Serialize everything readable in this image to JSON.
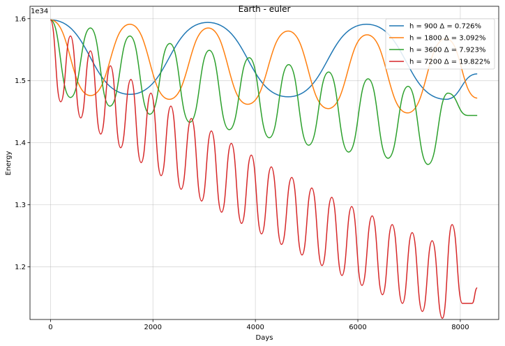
{
  "chart_data": {
    "type": "line",
    "title": "Earth - euler",
    "xlabel": "Days",
    "ylabel": "Energy",
    "y_offset_label": "1e34",
    "xlim": [
      -400,
      8750
    ],
    "ylim": [
      1.115,
      1.62
    ],
    "xticks": [
      0,
      2000,
      4000,
      6000,
      8000
    ],
    "xtick_labels": [
      "0",
      "2000",
      "4000",
      "6000",
      "8000"
    ],
    "yticks": [
      1.2,
      1.3,
      1.4,
      1.5,
      1.6
    ],
    "ytick_labels": [
      "1.2",
      "1.3",
      "1.4",
      "1.5",
      "1.6"
    ],
    "grid": true,
    "legend_position": "top-right",
    "series": [
      {
        "name": "h = 900 Δ =  0.726%",
        "color": "#1f77b4",
        "x": [
          0,
          1550,
          3070,
          4640,
          6170,
          7720,
          8330
        ],
        "y": [
          1.598,
          1.478,
          1.594,
          1.474,
          1.591,
          1.47,
          1.511
        ]
      },
      {
        "name": "h = 1800 Δ =  3.092%",
        "color": "#ff7f0e",
        "x": [
          0,
          780,
          1550,
          2320,
          3080,
          3850,
          4640,
          5420,
          6180,
          6970,
          7720,
          8330
        ],
        "y": [
          1.598,
          1.476,
          1.591,
          1.47,
          1.585,
          1.462,
          1.58,
          1.455,
          1.574,
          1.448,
          1.568,
          1.472
        ],
        "x_end": 8330,
        "y_end": 1.472
      },
      {
        "name": "h = 3600 Δ =  7.923%",
        "color": "#2ca02c",
        "x": [
          0,
          390,
          780,
          1160,
          1550,
          1940,
          2330,
          2720,
          3100,
          3490,
          3880,
          4270,
          4650,
          5040,
          5430,
          5820,
          6200,
          6590,
          6980,
          7370,
          7760,
          8140,
          8330
        ],
        "y": [
          1.598,
          1.473,
          1.585,
          1.459,
          1.572,
          1.446,
          1.56,
          1.433,
          1.549,
          1.421,
          1.537,
          1.408,
          1.526,
          1.396,
          1.514,
          1.385,
          1.503,
          1.375,
          1.491,
          1.365,
          1.48,
          1.444,
          1.444
        ]
      },
      {
        "name": "h = 7200 Δ =  19.822%",
        "color": "#d62728",
        "x": [
          0,
          200,
          390,
          590,
          780,
          980,
          1170,
          1370,
          1570,
          1770,
          1960,
          2160,
          2350,
          2550,
          2750,
          2950,
          3140,
          3340,
          3530,
          3730,
          3920,
          4120,
          4310,
          4510,
          4710,
          4910,
          5100,
          5300,
          5490,
          5690,
          5880,
          6080,
          6280,
          6480,
          6670,
          6870,
          7060,
          7260,
          7450,
          7650,
          7840,
          8040,
          8230,
          8330
        ],
        "y": [
          1.598,
          1.466,
          1.572,
          1.44,
          1.548,
          1.414,
          1.524,
          1.392,
          1.502,
          1.368,
          1.48,
          1.347,
          1.459,
          1.325,
          1.439,
          1.306,
          1.419,
          1.288,
          1.399,
          1.27,
          1.38,
          1.253,
          1.361,
          1.236,
          1.344,
          1.219,
          1.327,
          1.202,
          1.312,
          1.186,
          1.297,
          1.17,
          1.282,
          1.155,
          1.268,
          1.141,
          1.255,
          1.128,
          1.242,
          1.117,
          1.268,
          1.141,
          1.141,
          1.166
        ]
      }
    ]
  }
}
